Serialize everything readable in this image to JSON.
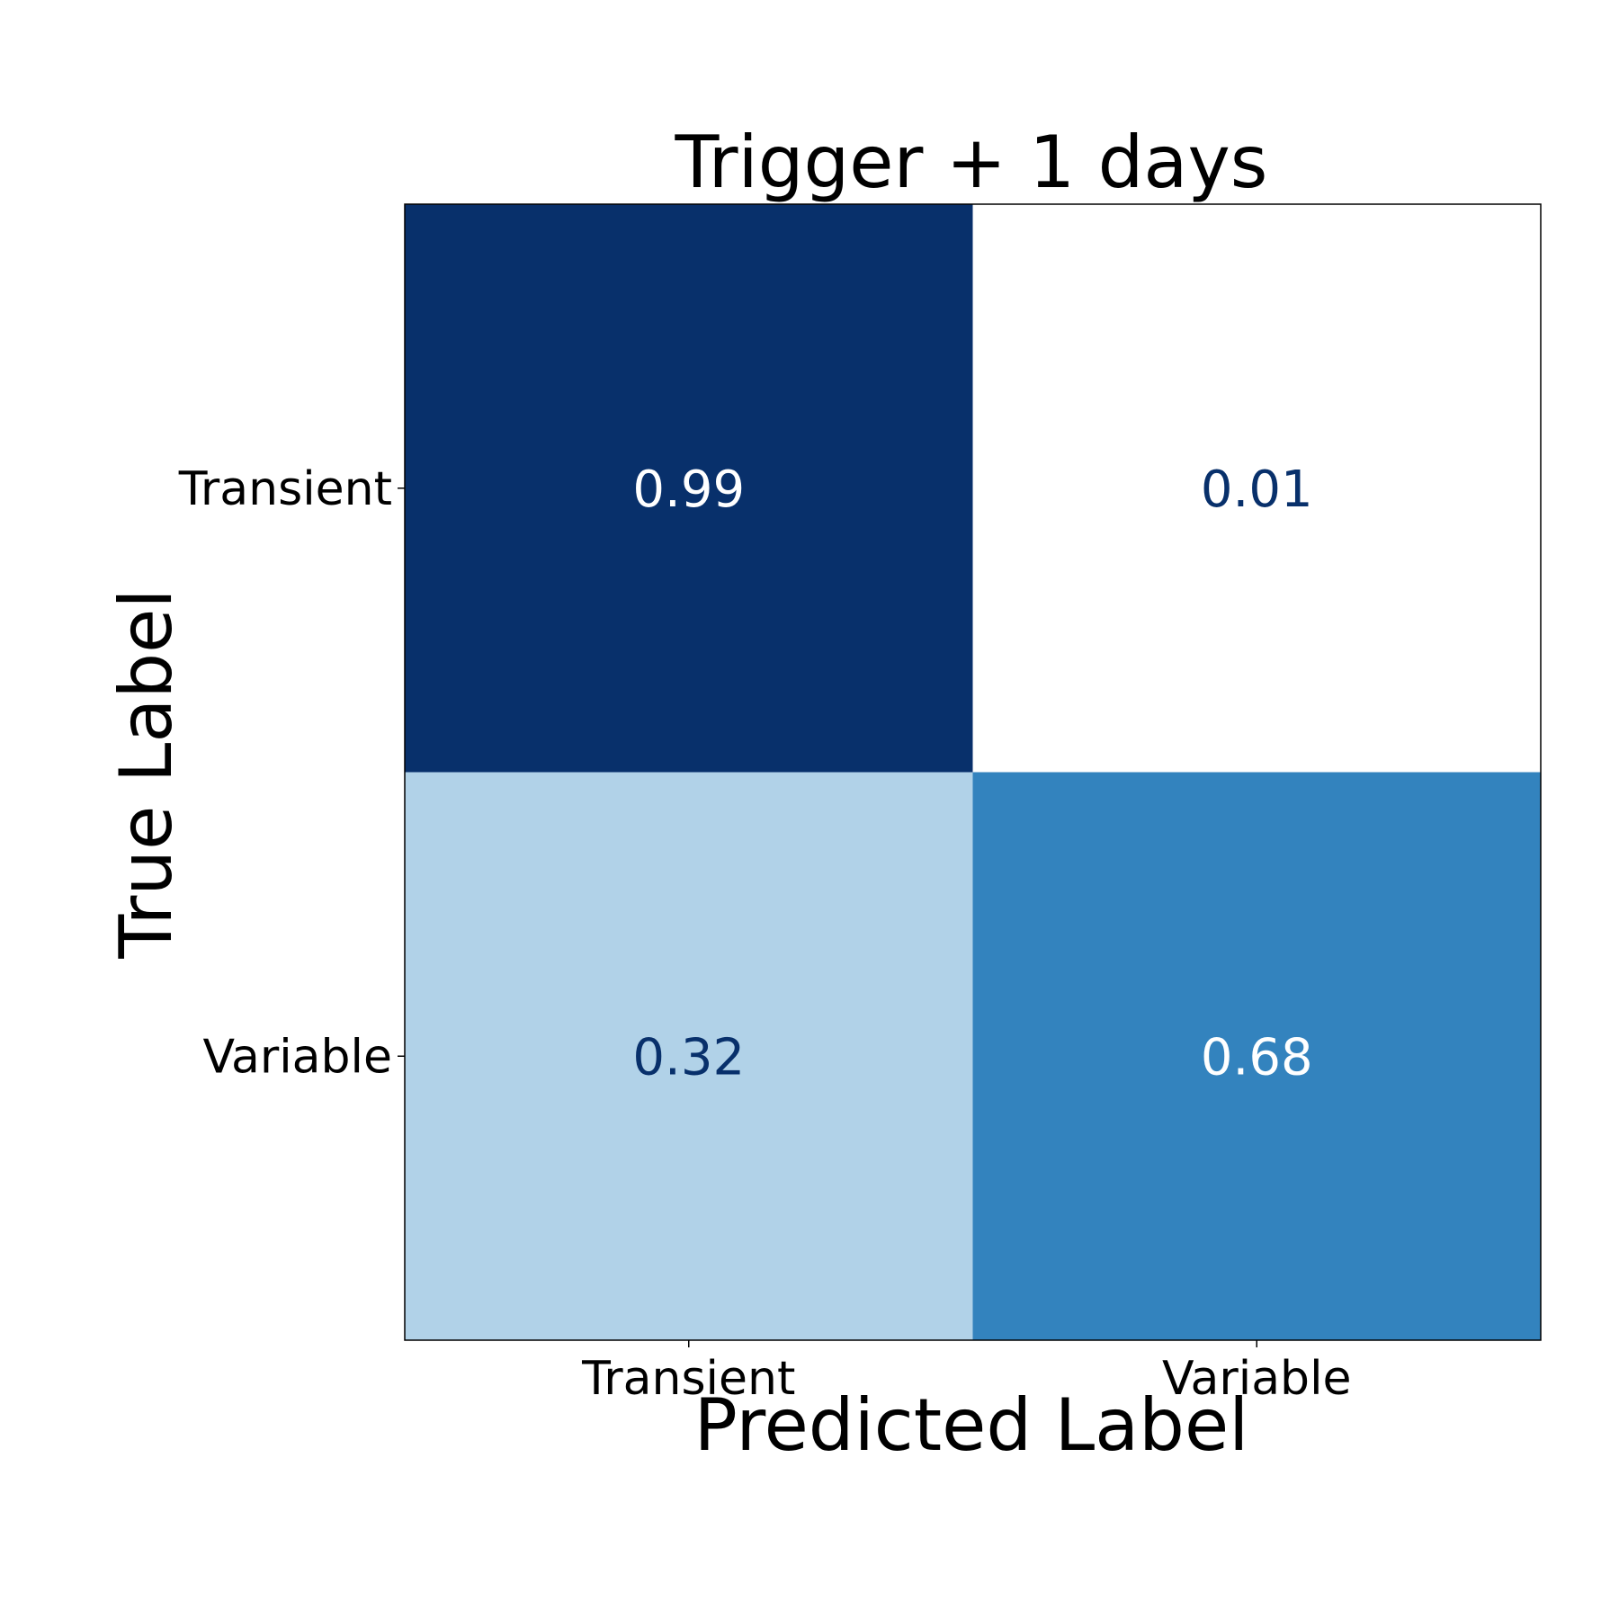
{
  "chart_data": {
    "type": "heatmap",
    "title": "Trigger + 1 days",
    "xlabel": "Predicted Label",
    "ylabel": "True Label",
    "x_categories": [
      "Transient",
      "Variable"
    ],
    "y_categories": [
      "Transient",
      "Variable"
    ],
    "values": [
      [
        0.99,
        0.01
      ],
      [
        0.32,
        0.68
      ]
    ],
    "value_labels": [
      [
        "0.99",
        "0.01"
      ],
      [
        "0.32",
        "0.68"
      ]
    ],
    "colormap": "Blues",
    "vmin": 0.01,
    "vmax": 0.99,
    "colors": {
      "dark": "#08306b",
      "light": "#ffffff",
      "text_light": "#ffffff",
      "text_dark": "#08306b"
    },
    "grid": false,
    "legend": "none"
  }
}
